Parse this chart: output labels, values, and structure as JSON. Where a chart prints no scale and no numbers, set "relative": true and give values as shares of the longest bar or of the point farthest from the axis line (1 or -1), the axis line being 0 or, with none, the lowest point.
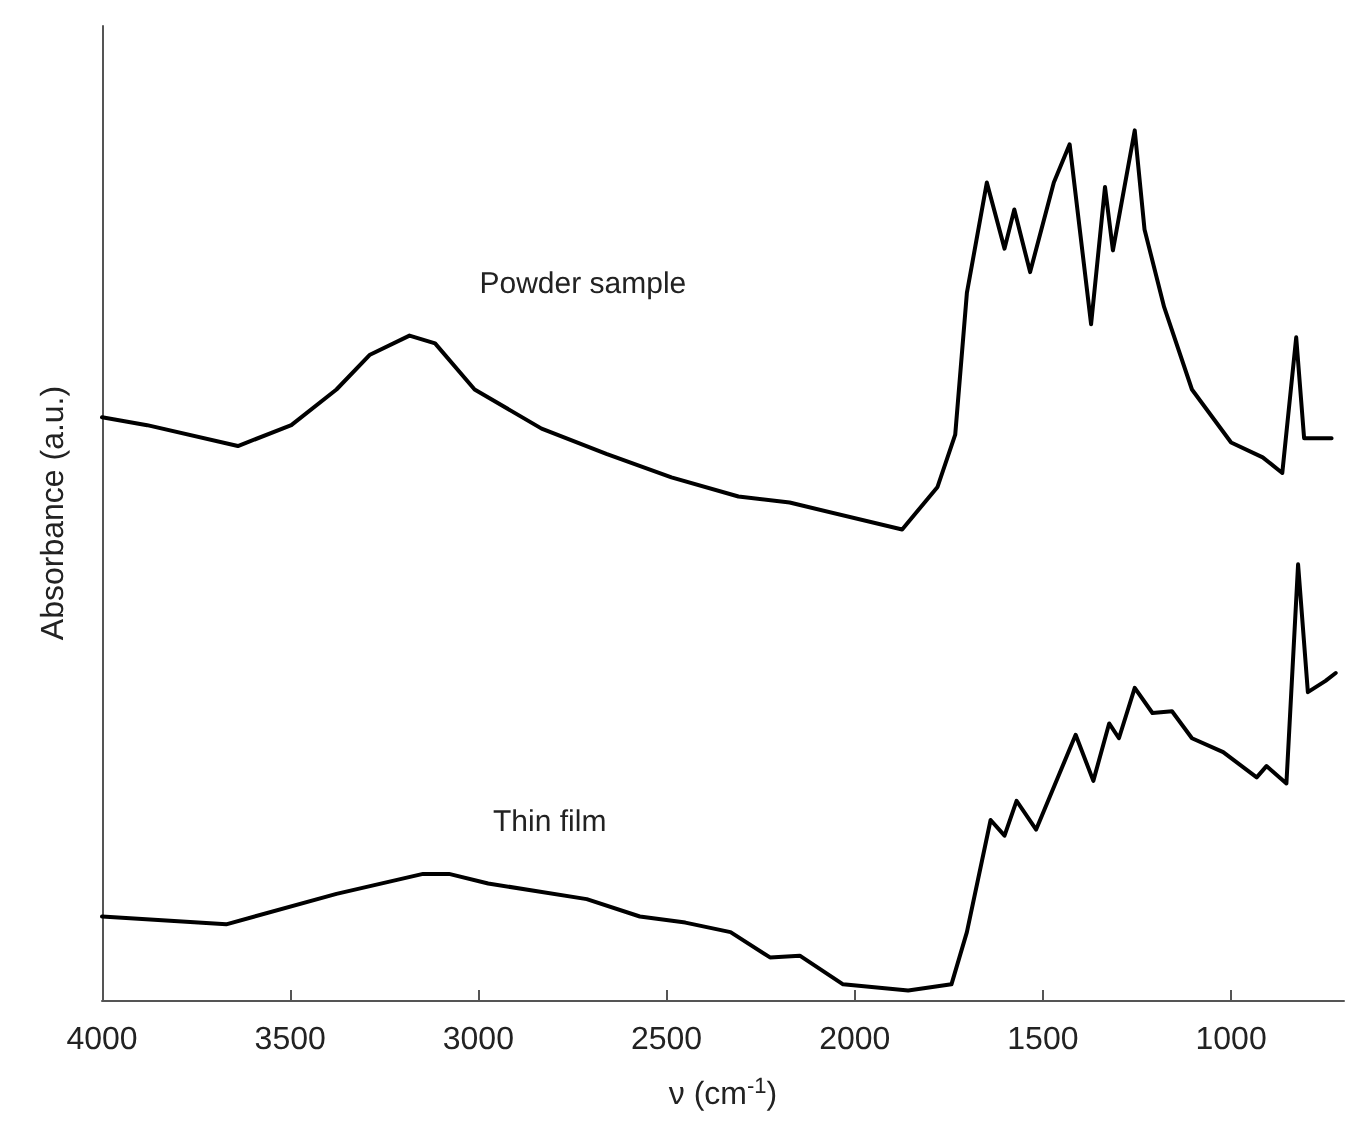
{
  "chart_data": {
    "type": "line",
    "relative": true,
    "xlabel": "ν (cm$^{-1}$)",
    "ylabel": "Absorbance (a.u.)",
    "xlim": [
      4000,
      700
    ],
    "xticks": [
      4000,
      3500,
      3000,
      2500,
      2000,
      1500,
      1000
    ],
    "grid": false,
    "legend": false,
    "marker": "none",
    "line_style": "solid",
    "series": [
      {
        "name": "Powder sample",
        "color": "#000000",
        "x": [
          4000,
          3880,
          3639,
          3497,
          3377,
          3288,
          3183,
          3115,
          3010,
          2832,
          2660,
          2487,
          2309,
          2173,
          1874,
          1780,
          1733,
          1702,
          1649,
          1602,
          1576,
          1534,
          1471,
          1429,
          1372,
          1335,
          1314,
          1256,
          1230,
          1178,
          1104,
          1000,
          916,
          864,
          827,
          806,
          733
        ],
        "values": [
          0.67,
          0.661,
          0.637,
          0.661,
          0.702,
          0.742,
          0.764,
          0.755,
          0.702,
          0.657,
          0.628,
          0.601,
          0.579,
          0.572,
          0.541,
          0.59,
          0.65,
          0.813,
          0.94,
          0.864,
          0.909,
          0.837,
          0.94,
          0.984,
          0.777,
          0.935,
          0.862,
          1,
          0.886,
          0.797,
          0.702,
          0.641,
          0.624,
          0.606,
          0.762,
          0.646,
          0.646
        ]
      },
      {
        "name": "Thin film",
        "color": "#000000",
        "x": [
          4000,
          3670,
          3377,
          3147,
          3078,
          2974,
          2712,
          2571,
          2450,
          2330,
          2225,
          2146,
          2031,
          1858,
          1743,
          1702,
          1639,
          1602,
          1570,
          1518,
          1413,
          1366,
          1324,
          1298,
          1256,
          1209,
          1157,
          1104,
          1021,
          932,
          906,
          853,
          822,
          796,
          749,
          722
        ],
        "values": [
          0.096,
          0.087,
          0.122,
          0.145,
          0.145,
          0.134,
          0.116,
          0.096,
          0.089,
          0.078,
          0.049,
          0.051,
          0.018,
          0.011,
          0.018,
          0.078,
          0.207,
          0.189,
          0.229,
          0.196,
          0.305,
          0.252,
          0.318,
          0.301,
          0.359,
          0.33,
          0.332,
          0.301,
          0.285,
          0.256,
          0.269,
          0.249,
          0.501,
          0.354,
          0.367,
          0.376
        ]
      }
    ]
  }
}
